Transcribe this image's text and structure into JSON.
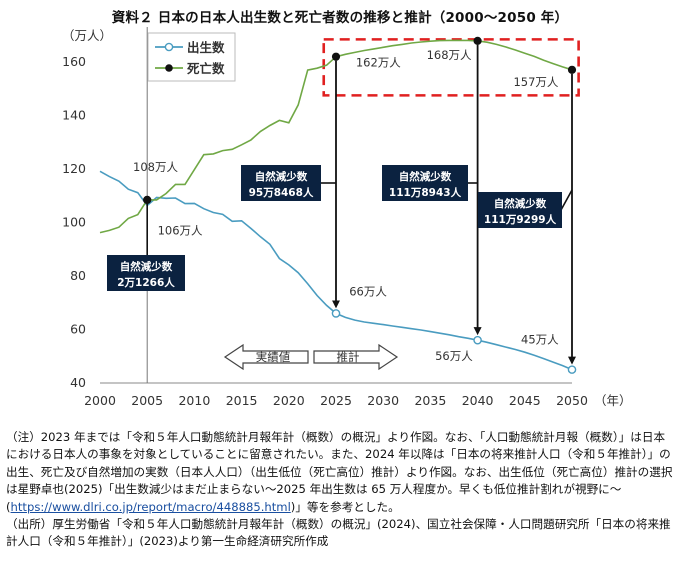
{
  "title": "資料２ 日本の日本人出生数と死亡者数の推移と推計（2000～2050 年）",
  "chart_data": {
    "type": "line",
    "ylabel": "（万人）",
    "xlabel": "（年）",
    "xlim": [
      2000,
      2050
    ],
    "ylim": [
      40,
      170
    ],
    "x_ticks": [
      "2000",
      "2005",
      "2010",
      "2015",
      "2020",
      "2025",
      "2030",
      "2035",
      "2040",
      "2045",
      "2050"
    ],
    "y_ticks": [
      "40",
      "60",
      "80",
      "100",
      "120",
      "140",
      "160"
    ],
    "legend": {
      "placement": "top-left",
      "items": [
        "出生数",
        "死亡数"
      ]
    },
    "colors": {
      "births": "#4a9cc0",
      "deaths": "#70a845",
      "highlight": "#e02020",
      "box": "#0b2240"
    },
    "series": [
      {
        "name": "出生数",
        "x": [
          2000,
          2001,
          2002,
          2003,
          2004,
          2005,
          2006,
          2007,
          2008,
          2009,
          2010,
          2011,
          2012,
          2013,
          2014,
          2015,
          2016,
          2017,
          2018,
          2019,
          2020,
          2021,
          2022,
          2023,
          2024,
          2025,
          2026,
          2027,
          2028,
          2029,
          2030,
          2031,
          2032,
          2033,
          2034,
          2035,
          2036,
          2037,
          2038,
          2039,
          2040,
          2041,
          2042,
          2043,
          2044,
          2045,
          2046,
          2047,
          2048,
          2049,
          2050
        ],
        "values": [
          119.1,
          117.1,
          115.4,
          112.4,
          111.1,
          106.3,
          109.3,
          109.0,
          109.1,
          107.0,
          107.1,
          105.1,
          103.7,
          103.0,
          100.4,
          100.6,
          97.7,
          94.6,
          91.8,
          86.5,
          84.1,
          81.2,
          77.1,
          72.7,
          69.0,
          66.0,
          64.5,
          63.5,
          62.8,
          62.3,
          61.8,
          61.3,
          60.8,
          60.3,
          59.8,
          59.2,
          58.6,
          58.0,
          57.3,
          56.7,
          56.0,
          55.2,
          54.3,
          53.4,
          52.5,
          51.5,
          50.4,
          49.1,
          47.8,
          46.5,
          45.0
        ]
      },
      {
        "name": "死亡数",
        "x": [
          2000,
          2001,
          2002,
          2003,
          2004,
          2005,
          2006,
          2007,
          2008,
          2009,
          2010,
          2011,
          2012,
          2013,
          2014,
          2015,
          2016,
          2017,
          2018,
          2019,
          2020,
          2021,
          2022,
          2023,
          2024,
          2025,
          2026,
          2027,
          2028,
          2029,
          2030,
          2031,
          2032,
          2033,
          2034,
          2035,
          2036,
          2037,
          2038,
          2039,
          2040,
          2041,
          2042,
          2043,
          2044,
          2045,
          2046,
          2047,
          2048,
          2049,
          2050
        ],
        "values": [
          96.2,
          97.0,
          98.2,
          101.5,
          102.9,
          108.4,
          108.4,
          110.8,
          114.2,
          114.2,
          119.7,
          125.3,
          125.6,
          126.8,
          127.3,
          129.0,
          130.8,
          134.0,
          136.2,
          138.1,
          137.2,
          143.9,
          156.9,
          157.6,
          158.7,
          161.9,
          162.8,
          163.5,
          164.2,
          164.8,
          165.4,
          166.0,
          166.5,
          167.0,
          167.4,
          167.7,
          167.9,
          168.0,
          168.0,
          168.0,
          167.8,
          167.3,
          166.5,
          165.5,
          164.4,
          163.2,
          162.0,
          160.6,
          159.3,
          158.1,
          157.0
        ]
      }
    ],
    "annotations": {
      "births_2005": "106万人",
      "deaths_2005": "108万人",
      "births_2025": "66万人",
      "deaths_2025": "162万人",
      "deaths_2040": "168万人",
      "births_2040": "56万人",
      "deaths_2050": "157万人",
      "births_2050": "45万人",
      "box_2005": [
        "自然減少数",
        "2万1266人"
      ],
      "box_2025": [
        "自然減少数",
        "95万8468人"
      ],
      "box_2040": [
        "自然減少数",
        "111万8943人"
      ],
      "box_2050": [
        "自然減少数",
        "111万9299人"
      ],
      "arrow_actual": "実績値",
      "arrow_forecast": "推計"
    }
  },
  "notes": {
    "note_label": "（注）",
    "note_text_before": "2023 年までは「令和５年人口動態統計月報年計（概数）の概況」より作図。なお、「人口動態統計月報（概数）」は日本における日本人の事象を対象としていることに留意されたい。また、2024 年以降は「日本の将来推計人口（令和５年推計）」の出生、死亡及び自然増加の実数（日本人人口）（出生低位（死亡高位）推計）より作図。なお、出生低位（死亡高位）推計の選択は星野卓也(2025)「出生数減少はまだ止まらない～2025 年出生数は 65 万人程度か。早くも低位推計割れが視野に～(",
    "note_link": "https://www.dlri.co.jp/report/macro/448885.html",
    "note_text_after": ")」等を参考とした。",
    "source_label": "（出所）",
    "source_text": "厚生労働省「令和５年人口動態統計月報年計（概数）の概況」(2024)、国立社会保障・人口問題研究所「日本の将来推計人口（令和５年推計）」(2023)より第一生命経済研究所作成"
  }
}
